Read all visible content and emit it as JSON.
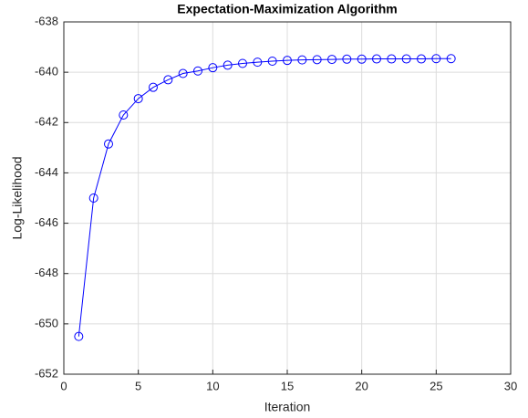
{
  "chart_data": {
    "type": "line",
    "title": "Expectation-Maximization Algorithm",
    "xlabel": "Iteration",
    "ylabel": "Log-Likelihood",
    "x": [
      1,
      2,
      3,
      4,
      5,
      6,
      7,
      8,
      9,
      10,
      11,
      12,
      13,
      14,
      15,
      16,
      17,
      18,
      19,
      20,
      21,
      22,
      23,
      24,
      25,
      26
    ],
    "series": [
      {
        "color": "#0000ff",
        "marker": "circle",
        "values": [
          -650.5,
          -645.0,
          -642.85,
          -641.7,
          -641.05,
          -640.6,
          -640.3,
          -640.05,
          -639.95,
          -639.82,
          -639.72,
          -639.65,
          -639.6,
          -639.56,
          -639.53,
          -639.51,
          -639.5,
          -639.49,
          -639.48,
          -639.48,
          -639.47,
          -639.47,
          -639.47,
          -639.47,
          -639.46,
          -639.46
        ]
      }
    ],
    "xlim": [
      0,
      30
    ],
    "xticks": [
      0,
      5,
      10,
      15,
      20,
      25,
      30
    ],
    "ylim": [
      -652,
      -638
    ],
    "yticks": [
      -652,
      -650,
      -648,
      -646,
      -644,
      -642,
      -640,
      -638
    ],
    "grid": true
  }
}
